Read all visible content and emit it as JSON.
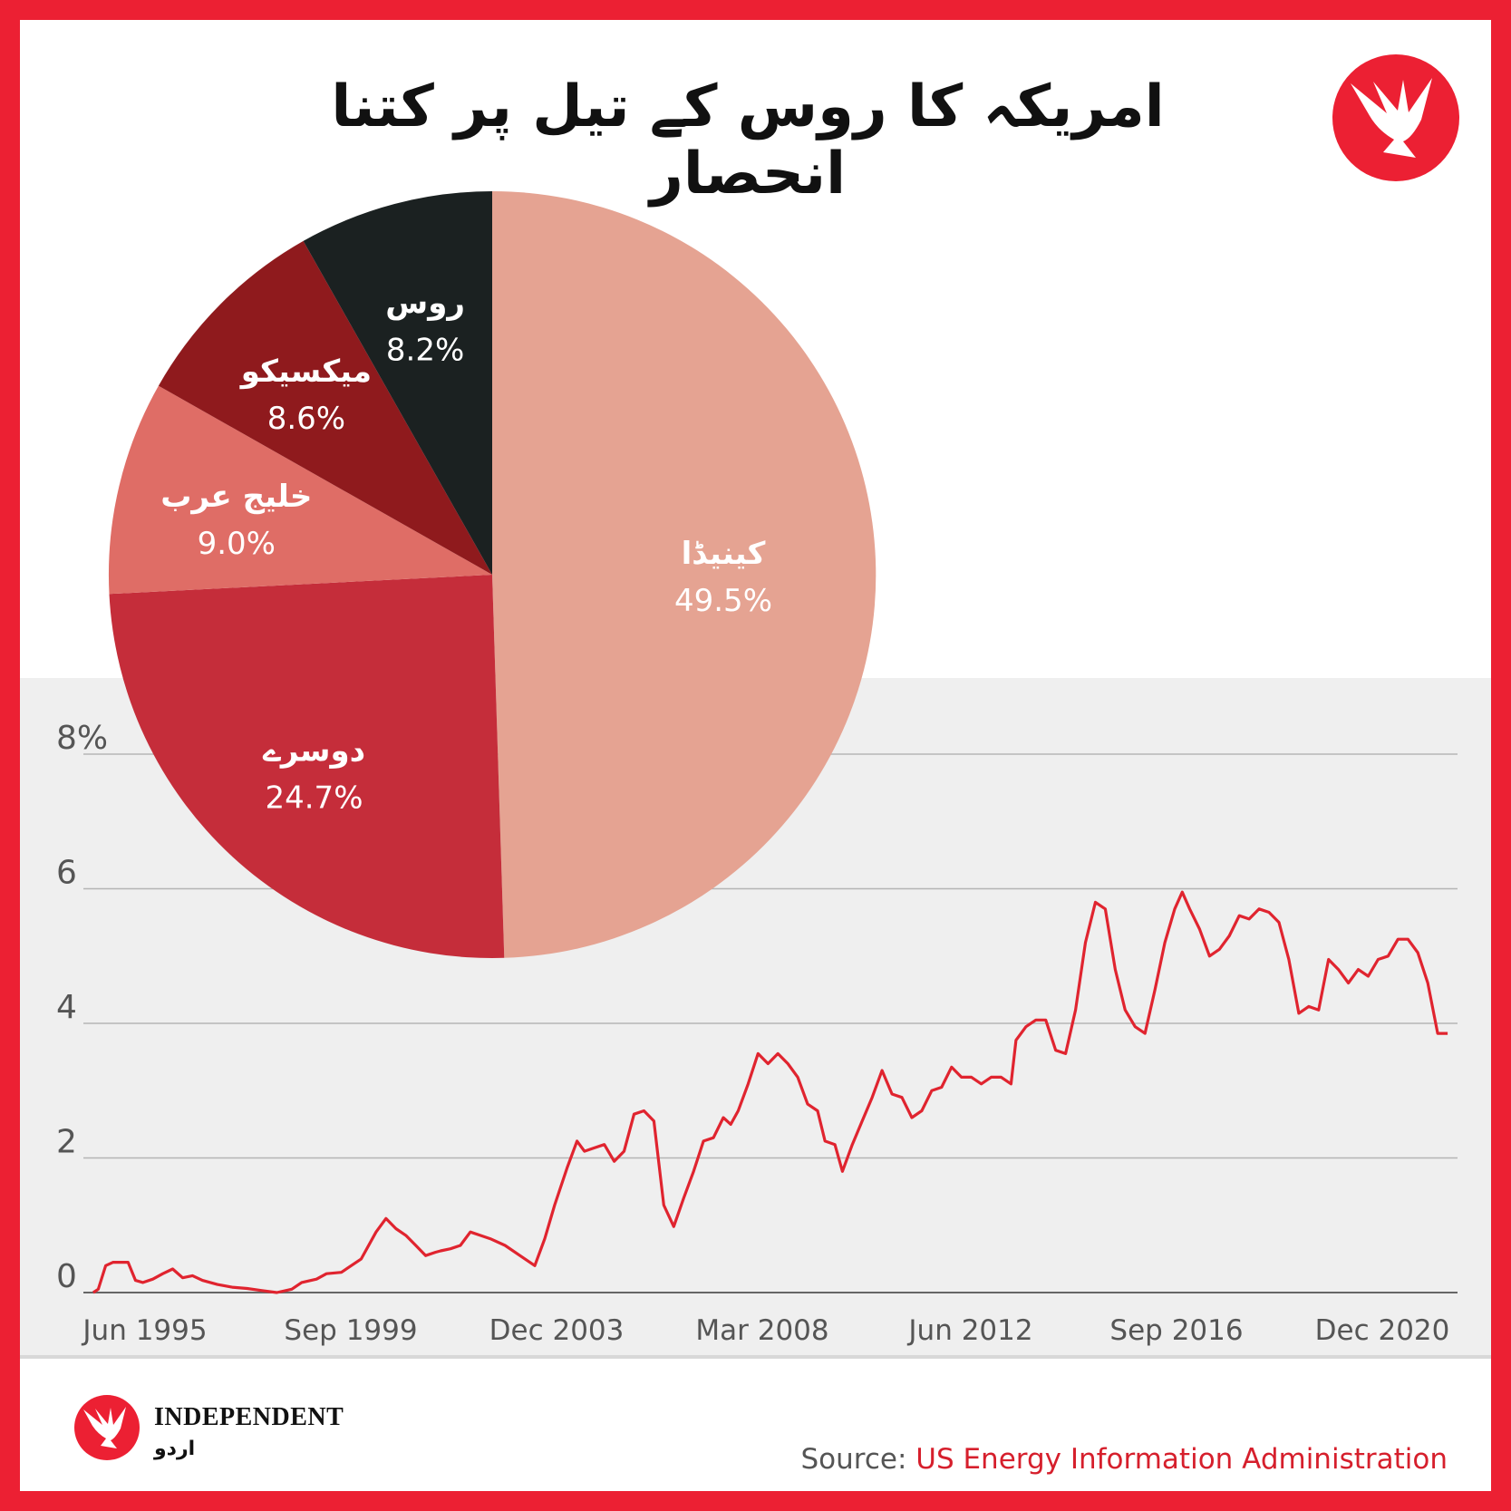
{
  "title": "امریکہ کا روس کے تیل پر کتنا انحصار",
  "source": {
    "label": "Source:",
    "value": "US Energy Information Administration"
  },
  "brand": {
    "name": "INDEPENDENT",
    "sub": "اردو"
  },
  "colors": {
    "frame": "#ec2033",
    "line": "#e0242f",
    "plot_bg": "#efefef"
  },
  "icons": {
    "logo": "eagle-logo-icon",
    "brand_logo": "eagle-brand-icon"
  },
  "chart_data": [
    {
      "type": "pie",
      "title": "",
      "labels": [
        "کینیڈا",
        "دوسرے",
        "خلیج عرب",
        "میکسیکو",
        "روس"
      ],
      "values": [
        49.5,
        24.7,
        9.0,
        8.6,
        8.2
      ],
      "value_labels": [
        "49.5%",
        "24.7%",
        "9.0%",
        "8.6%",
        "8.2%"
      ],
      "colors": [
        "#e5a392",
        "#c52d3a",
        "#df6d66",
        "#8f1a1d",
        "#1b2121"
      ]
    },
    {
      "type": "line",
      "title": "",
      "xlabel": "",
      "ylabel": "",
      "x_ticks": [
        "Jun 1995",
        "Sep 1999",
        "Dec 2003",
        "Mar 2008",
        "Jun 2012",
        "Sep 2016",
        "Dec 2020"
      ],
      "y_ticks": [
        "0",
        "2",
        "4",
        "6",
        "8%"
      ],
      "y_tick_values": [
        0,
        2,
        4,
        6,
        8
      ],
      "ylim": [
        0,
        9.2
      ],
      "xlim": [
        1994.8,
        2022.5
      ],
      "grid": true,
      "series": [
        {
          "values": [
            [
              1995.0,
              0.0
            ],
            [
              1995.1,
              0.05
            ],
            [
              1995.25,
              0.4
            ],
            [
              1995.4,
              0.45
            ],
            [
              1995.7,
              0.45
            ],
            [
              1995.85,
              0.18
            ],
            [
              1996.0,
              0.15
            ],
            [
              1996.2,
              0.2
            ],
            [
              1996.4,
              0.28
            ],
            [
              1996.6,
              0.35
            ],
            [
              1996.8,
              0.22
            ],
            [
              1997.0,
              0.25
            ],
            [
              1997.2,
              0.18
            ],
            [
              1997.5,
              0.12
            ],
            [
              1997.8,
              0.08
            ],
            [
              1998.1,
              0.06
            ],
            [
              1998.4,
              0.03
            ],
            [
              1998.7,
              0.0
            ],
            [
              1999.0,
              0.05
            ],
            [
              1999.2,
              0.15
            ],
            [
              1999.5,
              0.2
            ],
            [
              1999.7,
              0.28
            ],
            [
              2000.0,
              0.3
            ],
            [
              2000.2,
              0.4
            ],
            [
              2000.4,
              0.5
            ],
            [
              2000.7,
              0.9
            ],
            [
              2000.9,
              1.1
            ],
            [
              2001.1,
              0.95
            ],
            [
              2001.3,
              0.85
            ],
            [
              2001.5,
              0.7
            ],
            [
              2001.7,
              0.55
            ],
            [
              2001.9,
              0.6
            ],
            [
              2002.0,
              0.62
            ],
            [
              2002.2,
              0.65
            ],
            [
              2002.4,
              0.7
            ],
            [
              2002.6,
              0.9
            ],
            [
              2002.8,
              0.85
            ],
            [
              2003.0,
              0.8
            ],
            [
              2003.3,
              0.7
            ],
            [
              2003.6,
              0.55
            ],
            [
              2003.9,
              0.4
            ],
            [
              2004.1,
              0.8
            ],
            [
              2004.3,
              1.3
            ],
            [
              2004.55,
              1.85
            ],
            [
              2004.75,
              2.25
            ],
            [
              2004.9,
              2.1
            ],
            [
              2005.1,
              2.15
            ],
            [
              2005.3,
              2.2
            ],
            [
              2005.5,
              1.95
            ],
            [
              2005.7,
              2.1
            ],
            [
              2005.9,
              2.65
            ],
            [
              2006.1,
              2.7
            ],
            [
              2006.3,
              2.55
            ],
            [
              2006.5,
              1.3
            ],
            [
              2006.7,
              0.98
            ],
            [
              2006.9,
              1.4
            ],
            [
              2007.1,
              1.8
            ],
            [
              2007.3,
              2.25
            ],
            [
              2007.5,
              2.3
            ],
            [
              2007.7,
              2.6
            ],
            [
              2007.85,
              2.5
            ],
            [
              2008.0,
              2.7
            ],
            [
              2008.2,
              3.1
            ],
            [
              2008.4,
              3.55
            ],
            [
              2008.6,
              3.4
            ],
            [
              2008.8,
              3.55
            ],
            [
              2009.0,
              3.4
            ],
            [
              2009.2,
              3.2
            ],
            [
              2009.4,
              2.8
            ],
            [
              2009.6,
              2.7
            ],
            [
              2009.75,
              2.25
            ],
            [
              2009.95,
              2.2
            ],
            [
              2010.1,
              1.8
            ],
            [
              2010.3,
              2.2
            ],
            [
              2010.5,
              2.55
            ],
            [
              2010.7,
              2.9
            ],
            [
              2010.9,
              3.3
            ],
            [
              2011.1,
              2.95
            ],
            [
              2011.3,
              2.9
            ],
            [
              2011.5,
              2.6
            ],
            [
              2011.7,
              2.7
            ],
            [
              2011.9,
              3.0
            ],
            [
              2012.1,
              3.05
            ],
            [
              2012.3,
              3.35
            ],
            [
              2012.5,
              3.2
            ],
            [
              2012.7,
              3.2
            ],
            [
              2012.9,
              3.1
            ],
            [
              2013.1,
              3.2
            ],
            [
              2013.3,
              3.2
            ],
            [
              2013.5,
              3.1
            ],
            [
              2013.6,
              3.75
            ],
            [
              2013.8,
              3.95
            ],
            [
              2014.0,
              4.05
            ],
            [
              2014.2,
              4.05
            ],
            [
              2014.4,
              3.6
            ],
            [
              2014.6,
              3.55
            ],
            [
              2014.8,
              4.2
            ],
            [
              2015.0,
              5.2
            ],
            [
              2015.2,
              5.8
            ],
            [
              2015.4,
              5.7
            ],
            [
              2015.6,
              4.8
            ],
            [
              2015.8,
              4.2
            ],
            [
              2016.0,
              3.95
            ],
            [
              2016.2,
              3.85
            ],
            [
              2016.4,
              4.5
            ],
            [
              2016.6,
              5.2
            ],
            [
              2016.8,
              5.7
            ],
            [
              2016.95,
              5.95
            ],
            [
              2017.1,
              5.7
            ],
            [
              2017.3,
              5.4
            ],
            [
              2017.5,
              5.0
            ],
            [
              2017.7,
              5.1
            ],
            [
              2017.9,
              5.3
            ],
            [
              2018.1,
              5.6
            ],
            [
              2018.3,
              5.55
            ],
            [
              2018.5,
              5.7
            ],
            [
              2018.7,
              5.65
            ],
            [
              2018.9,
              5.5
            ],
            [
              2019.1,
              4.95
            ],
            [
              2019.3,
              4.15
            ],
            [
              2019.5,
              4.25
            ],
            [
              2019.7,
              4.2
            ],
            [
              2019.9,
              4.95
            ],
            [
              2020.1,
              4.8
            ],
            [
              2020.3,
              4.6
            ],
            [
              2020.5,
              4.8
            ],
            [
              2020.7,
              4.7
            ],
            [
              2020.9,
              4.95
            ],
            [
              2021.1,
              5.0
            ],
            [
              2021.3,
              5.25
            ],
            [
              2021.5,
              5.25
            ],
            [
              2021.7,
              5.05
            ],
            [
              2021.9,
              4.6
            ],
            [
              2022.1,
              3.85
            ],
            [
              2022.3,
              3.85
            ]
          ]
        }
      ]
    }
  ]
}
